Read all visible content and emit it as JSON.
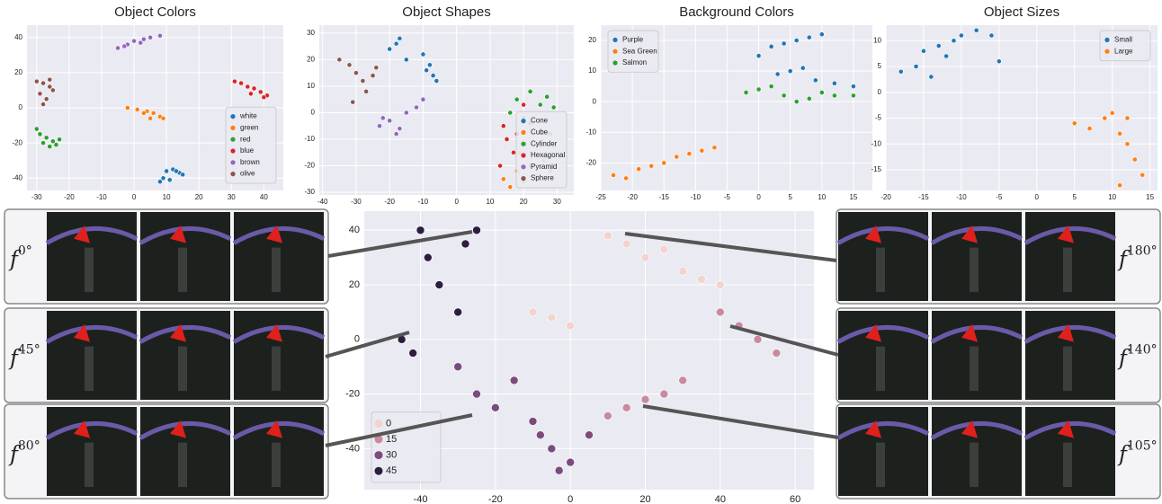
{
  "chart_data": [
    {
      "type": "scatter",
      "title": "Object Colors",
      "xlim": [
        -33,
        46
      ],
      "xticks": [
        -30,
        -20,
        -10,
        0,
        10,
        20,
        30,
        40
      ],
      "ylim": [
        -47,
        47
      ],
      "yticks": [
        -40,
        -20,
        0,
        20,
        40
      ],
      "grid": true,
      "background": "#eaeaf2",
      "legend": "lower right",
      "series": [
        {
          "name": "white",
          "color": "#1f77b4",
          "x": [
            10,
            12,
            14,
            15,
            9,
            11,
            13,
            8
          ],
          "y": [
            -36,
            -35,
            -37,
            -38,
            -40,
            -41,
            -36,
            -42
          ]
        },
        {
          "name": "green",
          "color": "#ff7f0e",
          "x": [
            -2,
            1,
            4,
            6,
            8,
            3,
            5,
            9
          ],
          "y": [
            0,
            -1,
            -2,
            -3,
            -5,
            -3,
            -6,
            -6
          ]
        },
        {
          "name": "red",
          "color": "#2ca02c",
          "x": [
            -30,
            -29,
            -27,
            -25,
            -23,
            -28,
            -26,
            -24
          ],
          "y": [
            -12,
            -15,
            -17,
            -19,
            -18,
            -20,
            -22,
            -21
          ]
        },
        {
          "name": "blue",
          "color": "#d62728",
          "x": [
            31,
            33,
            35,
            37,
            39,
            41,
            36,
            40
          ],
          "y": [
            15,
            14,
            12,
            11,
            9,
            7,
            8,
            6
          ]
        },
        {
          "name": "brown",
          "color": "#9467bd",
          "x": [
            -5,
            -2,
            0,
            2,
            5,
            8,
            3,
            -3
          ],
          "y": [
            34,
            36,
            38,
            37,
            40,
            41,
            39,
            35
          ]
        },
        {
          "name": "olive",
          "color": "#8c564b",
          "x": [
            -30,
            -28,
            -26,
            -25,
            -29,
            -27,
            -28,
            -26
          ],
          "y": [
            15,
            14,
            12,
            10,
            8,
            5,
            2,
            16
          ]
        }
      ]
    },
    {
      "type": "scatter",
      "title": "Object Shapes",
      "xlim": [
        -41,
        35
      ],
      "xticks": [
        -40,
        -30,
        -20,
        -10,
        0,
        10,
        20,
        30
      ],
      "ylim": [
        -31,
        33
      ],
      "yticks": [
        -30,
        -20,
        -10,
        0,
        10,
        20,
        30
      ],
      "grid": true,
      "background": "#eaeaf2",
      "legend": "lower right",
      "series": [
        {
          "name": "Cone",
          "color": "#1f77b4",
          "x": [
            -20,
            -18,
            -17,
            -15,
            -10,
            -8,
            -7,
            -9,
            -6
          ],
          "y": [
            24,
            26,
            28,
            20,
            22,
            18,
            14,
            16,
            12
          ]
        },
        {
          "name": "Cube",
          "color": "#ff7f0e",
          "x": [
            14,
            16,
            18,
            20,
            22,
            24,
            26,
            28,
            19
          ],
          "y": [
            -25,
            -28,
            -22,
            -26,
            -20,
            -24,
            -18,
            -22,
            -15
          ]
        },
        {
          "name": "Cylinder",
          "color": "#2ca02c",
          "x": [
            16,
            18,
            20,
            22,
            25,
            27,
            29,
            28
          ],
          "y": [
            0,
            5,
            -2,
            8,
            3,
            6,
            2,
            -8
          ]
        },
        {
          "name": "Hexagonal",
          "color": "#d62728",
          "x": [
            14,
            15,
            18,
            20,
            22,
            24,
            17,
            13
          ],
          "y": [
            -5,
            -10,
            -8,
            3,
            -4,
            -12,
            -15,
            -20
          ]
        },
        {
          "name": "Pyramid",
          "color": "#9467bd",
          "x": [
            -23,
            -20,
            -18,
            -15,
            -12,
            -10,
            -17,
            -22
          ],
          "y": [
            -5,
            -3,
            -8,
            0,
            2,
            5,
            -6,
            -2
          ]
        },
        {
          "name": "Sphere",
          "color": "#8c564b",
          "x": [
            -35,
            -32,
            -30,
            -28,
            -25,
            -27,
            -31,
            -24
          ],
          "y": [
            20,
            18,
            15,
            12,
            14,
            8,
            4,
            17
          ]
        }
      ]
    },
    {
      "type": "scatter",
      "title": "Background Colors",
      "xlim": [
        -25,
        18
      ],
      "xticks": [
        -25,
        -20,
        -15,
        -10,
        -5,
        0,
        5,
        10,
        15
      ],
      "ylim": [
        -29,
        25
      ],
      "yticks": [
        -20,
        -10,
        0,
        10,
        20
      ],
      "grid": true,
      "background": "#eaeaf2",
      "legend": "upper left",
      "series": [
        {
          "name": "Purple",
          "color": "#1f77b4",
          "x": [
            0,
            2,
            4,
            6,
            8,
            10,
            3,
            5,
            7,
            9,
            12,
            15
          ],
          "y": [
            15,
            18,
            19,
            20,
            21,
            22,
            9,
            10,
            11,
            7,
            6,
            5
          ]
        },
        {
          "name": "Sea Green",
          "color": "#ff7f0e",
          "x": [
            -23,
            -21,
            -19,
            -17,
            -15,
            -13,
            -11,
            -9,
            -7
          ],
          "y": [
            -24,
            -25,
            -22,
            -21,
            -20,
            -18,
            -17,
            -16,
            -15
          ]
        },
        {
          "name": "Salmon",
          "color": "#2ca02c",
          "x": [
            -2,
            0,
            2,
            4,
            6,
            8,
            10,
            12,
            15
          ],
          "y": [
            3,
            4,
            5,
            2,
            0,
            1,
            3,
            2,
            2
          ]
        }
      ]
    },
    {
      "type": "scatter",
      "title": "Object Sizes",
      "xlim": [
        -20,
        16
      ],
      "xticks": [
        -20,
        -15,
        -10,
        -5,
        0,
        5,
        10,
        15
      ],
      "ylim": [
        -19,
        13
      ],
      "yticks": [
        -15,
        -10,
        -5,
        0,
        5,
        10
      ],
      "grid": true,
      "background": "#eaeaf2",
      "legend": "upper right",
      "series": [
        {
          "name": "Small",
          "color": "#1f77b4",
          "x": [
            -18,
            -16,
            -15,
            -13,
            -11,
            -10,
            -8,
            -6,
            -5,
            -14,
            -12
          ],
          "y": [
            4,
            5,
            8,
            9,
            10,
            11,
            12,
            11,
            6,
            3,
            7
          ]
        },
        {
          "name": "Large",
          "color": "#ff7f0e",
          "x": [
            5,
            7,
            9,
            10,
            11,
            12,
            13,
            14,
            11,
            12
          ],
          "y": [
            -6,
            -7,
            -5,
            -4,
            -8,
            -10,
            -13,
            -16,
            -18,
            -5
          ]
        }
      ]
    },
    {
      "type": "scatter",
      "xlim": [
        -55,
        65
      ],
      "xticks": [
        -40,
        -20,
        0,
        20,
        40,
        60
      ],
      "ylim": [
        -55,
        47
      ],
      "yticks": [
        -40,
        -20,
        0,
        20,
        40
      ],
      "grid": true,
      "background": "#eaeaf2",
      "legend": "lower left",
      "series": [
        {
          "name": "0",
          "color": "#f3d3ce",
          "x": [
            15,
            20,
            25,
            30,
            35,
            40,
            -10,
            -5,
            0,
            10
          ],
          "y": [
            35,
            30,
            33,
            25,
            22,
            20,
            10,
            8,
            5,
            38
          ]
        },
        {
          "name": "15",
          "color": "#c98a9e",
          "x": [
            40,
            45,
            50,
            55,
            30,
            25,
            20,
            15,
            10
          ],
          "y": [
            10,
            5,
            0,
            -5,
            -15,
            -20,
            -22,
            -25,
            -28
          ]
        },
        {
          "name": "30",
          "color": "#7d4a7d",
          "x": [
            -30,
            -25,
            -20,
            -15,
            -10,
            -5,
            0,
            -8,
            -3,
            5
          ],
          "y": [
            -10,
            -20,
            -25,
            -15,
            -30,
            -40,
            -45,
            -35,
            -48,
            -35
          ]
        },
        {
          "name": "45",
          "color": "#2d1e3f",
          "x": [
            -40,
            -38,
            -35,
            -30,
            -28,
            -25,
            -45,
            -42
          ],
          "y": [
            40,
            30,
            20,
            10,
            35,
            40,
            0,
            -5
          ]
        }
      ]
    }
  ],
  "left_panels": [
    {
      "symbol": "f",
      "angle": "0°"
    },
    {
      "symbol": "f",
      "angle": "45°"
    },
    {
      "symbol": "f",
      "angle": "80°"
    }
  ],
  "right_panels": [
    {
      "symbol": "f",
      "angle": "180°"
    },
    {
      "symbol": "f",
      "angle": "140°"
    },
    {
      "symbol": "f",
      "angle": "105°"
    }
  ]
}
